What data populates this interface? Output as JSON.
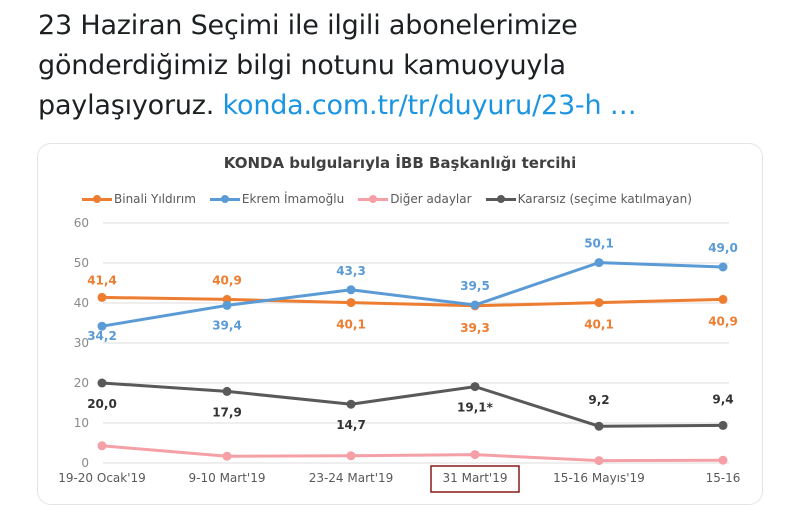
{
  "tweet": {
    "text_line1": "23 Haziran Seçimi ile ilgili abonelerimize",
    "text_line2": "gönderdiğimiz bilgi notunu kamuoyuyla",
    "text_line3": "paylaşıyoruz. ",
    "link": "konda.com.tr/tr/duyuru/23-h …"
  },
  "colors": {
    "binali": "#ed7d31",
    "ekrem": "#5b9bd5",
    "diger": "#f4a0a6",
    "kararsiz": "#595959",
    "link": "#1b95e0"
  },
  "chart_data": {
    "type": "line",
    "title": "KONDA bulgularıyla İBB Başkanlığı tercihi",
    "xlabel": "",
    "ylabel": "",
    "ylim": [
      0,
      60
    ],
    "yticks": [
      0,
      10,
      20,
      30,
      40,
      50,
      60
    ],
    "grid": true,
    "legend_position": "top",
    "categories": [
      "19-20 Ocak'19",
      "9-10 Mart'19",
      "23-24 Mart'19",
      "31 Mart'19",
      "15-16 Mayıs'19",
      "15-16"
    ],
    "highlighted_category": "31 Mart'19",
    "series": [
      {
        "name": "Binali Yıldırım",
        "color": "#ed7d31",
        "values": [
          41.4,
          40.9,
          40.1,
          39.3,
          40.1,
          40.9
        ],
        "labels": [
          "41,4",
          "40,9",
          "40,1",
          "39,3",
          "40,1",
          "40,9"
        ]
      },
      {
        "name": "Ekrem İmamoğlu",
        "color": "#5b9bd5",
        "values": [
          34.2,
          39.4,
          43.3,
          39.5,
          50.1,
          49.0
        ],
        "labels": [
          "34,2",
          "39,4",
          "43,3",
          "39,5",
          "50,1",
          "49,0"
        ]
      },
      {
        "name": "Diğer adaylar",
        "color": "#f4a0a6",
        "values": [
          4.3,
          1.7,
          1.8,
          2.1,
          0.6,
          0.7
        ],
        "labels": []
      },
      {
        "name": "Kararsız (seçime katılmayan)",
        "color": "#595959",
        "values": [
          20.0,
          17.9,
          14.7,
          19.1,
          9.2,
          9.4
        ],
        "labels": [
          "20,0",
          "17,9",
          "14,7",
          "19,1*",
          "9,2",
          "9,4"
        ]
      }
    ]
  }
}
